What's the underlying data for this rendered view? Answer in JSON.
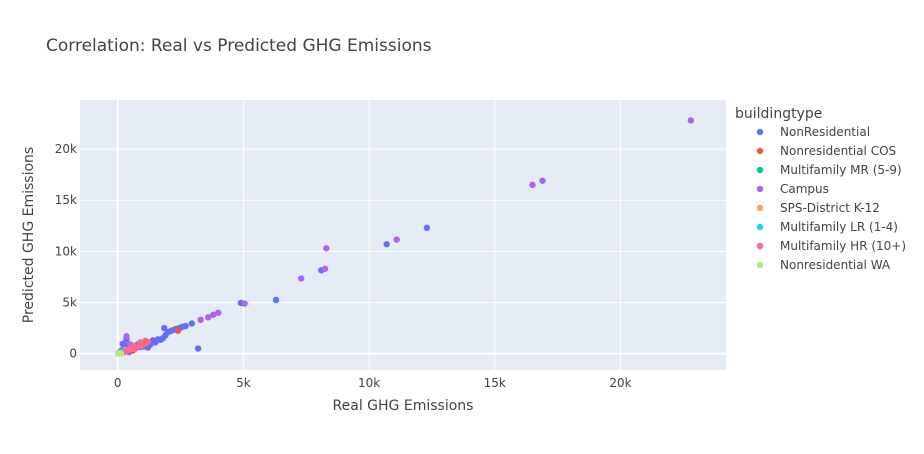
{
  "chart_data": {
    "type": "scatter",
    "title": "Correlation: Real vs Predicted GHG Emissions",
    "xlabel": "Real GHG Emissions",
    "ylabel": "Predicted GHG Emissions",
    "xlim": [
      -1500,
      24200
    ],
    "ylim": [
      -1600,
      24800
    ],
    "x_ticks": [
      0,
      5000,
      10000,
      15000,
      20000
    ],
    "x_tick_labels": [
      "0",
      "5k",
      "10k",
      "15k",
      "20k"
    ],
    "y_ticks": [
      0,
      5000,
      10000,
      15000,
      20000
    ],
    "y_tick_labels": [
      "0",
      "5k",
      "10k",
      "15k",
      "20k"
    ],
    "grid": true,
    "legend_title": "buildingtype",
    "legend_position": "right",
    "series": [
      {
        "name": "NonResidential",
        "color": "#636efa",
        "points": [
          [
            30,
            20
          ],
          [
            80,
            150
          ],
          [
            150,
            300
          ],
          [
            200,
            950
          ],
          [
            350,
            1400
          ],
          [
            260,
            500
          ],
          [
            400,
            800
          ],
          [
            450,
            150
          ],
          [
            500,
            600
          ],
          [
            550,
            350
          ],
          [
            600,
            750
          ],
          [
            700,
            500
          ],
          [
            800,
            900
          ],
          [
            900,
            650
          ],
          [
            950,
            1000
          ],
          [
            1050,
            700
          ],
          [
            1100,
            1050
          ],
          [
            1200,
            600
          ],
          [
            1300,
            900
          ],
          [
            1400,
            1300
          ],
          [
            1500,
            1100
          ],
          [
            1600,
            1400
          ],
          [
            1700,
            1350
          ],
          [
            1800,
            1500
          ],
          [
            1900,
            1800
          ],
          [
            2000,
            2100
          ],
          [
            1850,
            2500
          ],
          [
            2100,
            2200
          ],
          [
            2200,
            2300
          ],
          [
            2300,
            2400
          ],
          [
            2400,
            2450
          ],
          [
            2500,
            2550
          ],
          [
            2600,
            2650
          ],
          [
            2700,
            2700
          ],
          [
            2950,
            2950
          ],
          [
            3200,
            500
          ],
          [
            4900,
            4950
          ],
          [
            6300,
            5250
          ],
          [
            8100,
            8150
          ],
          [
            10700,
            10700
          ],
          [
            12300,
            12300
          ]
        ]
      },
      {
        "name": "Nonresidential COS",
        "color": "#ef553b",
        "points": [
          [
            300,
            250
          ],
          [
            450,
            400
          ],
          [
            600,
            300
          ],
          [
            750,
            600
          ],
          [
            900,
            750
          ],
          [
            1100,
            900
          ],
          [
            2400,
            2250
          ]
        ]
      },
      {
        "name": "Multifamily MR (5-9)",
        "color": "#00cc96",
        "points": [
          [
            100,
            80
          ],
          [
            180,
            150
          ],
          [
            250,
            200
          ],
          [
            320,
            260
          ],
          [
            400,
            330
          ]
        ]
      },
      {
        "name": "Campus",
        "color": "#ab63fa",
        "points": [
          [
            350,
            1700
          ],
          [
            500,
            900
          ],
          [
            3300,
            3300
          ],
          [
            3600,
            3550
          ],
          [
            3800,
            3800
          ],
          [
            4000,
            4000
          ],
          [
            5050,
            4900
          ],
          [
            7300,
            7350
          ],
          [
            8250,
            8300
          ],
          [
            8300,
            10300
          ],
          [
            11100,
            11150
          ],
          [
            16500,
            16500
          ],
          [
            16900,
            16900
          ],
          [
            22800,
            22800
          ]
        ]
      },
      {
        "name": "SPS-District K-12",
        "color": "#ffa15a",
        "points": [
          [
            300,
            350
          ],
          [
            500,
            450
          ],
          [
            700,
            650
          ],
          [
            900,
            800
          ],
          [
            1000,
            1000
          ],
          [
            1150,
            1100
          ]
        ]
      },
      {
        "name": "Multifamily LR (1-4)",
        "color": "#19d3f3",
        "points": [
          [
            60,
            40
          ],
          [
            120,
            100
          ],
          [
            190,
            140
          ],
          [
            260,
            210
          ]
        ]
      },
      {
        "name": "Multifamily HR (10+)",
        "color": "#ff6692",
        "points": [
          [
            250,
            150
          ],
          [
            400,
            300
          ],
          [
            550,
            500
          ],
          [
            650,
            450
          ],
          [
            800,
            700
          ],
          [
            1000,
            900
          ],
          [
            1200,
            1150
          ],
          [
            1100,
            1250
          ],
          [
            900,
            1100
          ],
          [
            600,
            750
          ]
        ]
      },
      {
        "name": "Nonresidential WA",
        "color": "#b6e880",
        "points": [
          [
            20,
            10
          ],
          [
            60,
            30
          ],
          [
            90,
            60
          ],
          [
            130,
            20
          ]
        ]
      }
    ]
  }
}
